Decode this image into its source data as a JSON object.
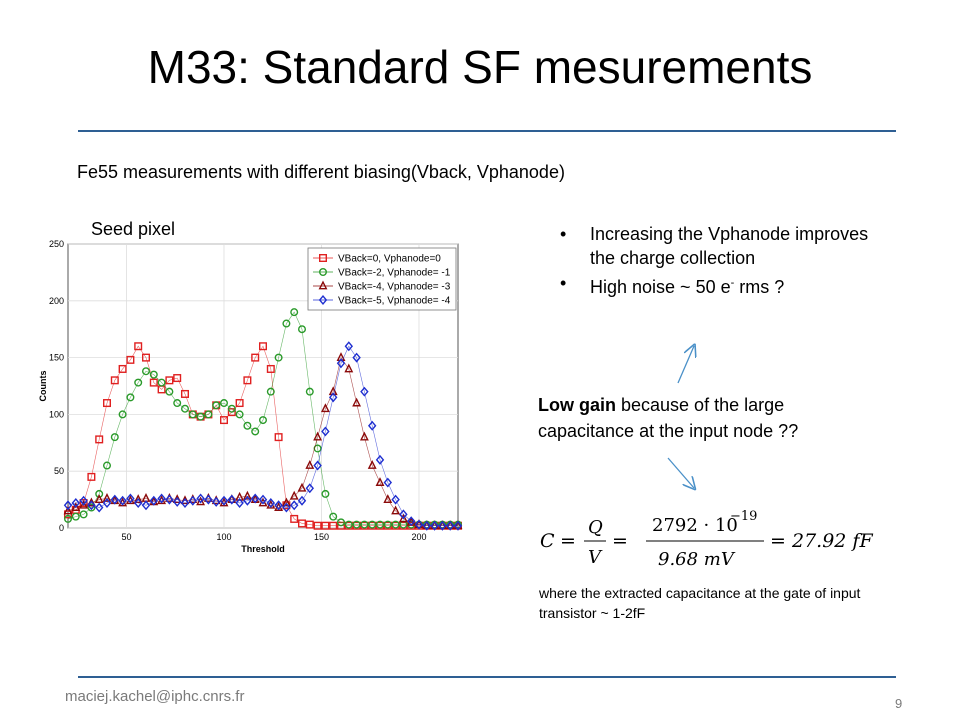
{
  "slide": {
    "title": "M33: Standard SF mesurements",
    "subtitle": "Fe55 measurements with different biasing(Vback, Vphanode)",
    "plot_label": "Seed pixel",
    "bullets": [
      {
        "text": "Increasing the Vphanode improves the charge collection"
      },
      {
        "text_pre": "High noise ~ 50 e",
        "sup": "-",
        "text_post": " rms ?"
      }
    ],
    "low_gain_bold": "Low gain",
    "low_gain_rest": " because of the large capacitance at the input node ??",
    "formula": {
      "lhs": "C",
      "eq": "=",
      "q_num": "Q",
      "q_den": "V",
      "num": "2792 · 10",
      "exp": "−19",
      "den": "9.68 mV",
      "result": "27.92 fF"
    },
    "note": "where the extracted capacitance at the gate of input transistor ~ 1-2fF",
    "email": "maciej.kachel@iphc.cnrs.fr",
    "page_number": "9",
    "colors": {
      "rule": "#2e5f93",
      "arrow": "#4a90c8"
    }
  },
  "chart_data": {
    "type": "scatter",
    "xlabel": "Threshold",
    "ylabel": "Counts",
    "xlim": [
      20,
      220
    ],
    "ylim": [
      0,
      250
    ],
    "xticks": [
      50,
      100,
      150,
      200
    ],
    "yticks": [
      0,
      50,
      100,
      150,
      200,
      250
    ],
    "legend_position": "top-right",
    "grid": true,
    "x": [
      20,
      24,
      28,
      32,
      36,
      40,
      44,
      48,
      52,
      56,
      60,
      64,
      68,
      72,
      76,
      80,
      84,
      88,
      92,
      96,
      100,
      104,
      108,
      112,
      116,
      120,
      124,
      128,
      132,
      136,
      140,
      144,
      148,
      152,
      156,
      160,
      164,
      168,
      172,
      176,
      180,
      184,
      188,
      192,
      196,
      200,
      204,
      208,
      212,
      216,
      220
    ],
    "series": [
      {
        "name": "VBack=0, Vphanode=0",
        "color": "#e02020",
        "marker": "square",
        "values": [
          12,
          16,
          22,
          45,
          78,
          110,
          130,
          140,
          148,
          160,
          150,
          128,
          122,
          130,
          132,
          118,
          100,
          98,
          100,
          108,
          95,
          102,
          110,
          130,
          150,
          160,
          140,
          80,
          20,
          8,
          4,
          3,
          2,
          2,
          2,
          2,
          2,
          2,
          2,
          2,
          2,
          2,
          2,
          2,
          2,
          2,
          2,
          2,
          2,
          2,
          2
        ]
      },
      {
        "name": "VBack=-2, Vphanode= -1",
        "color": "#2a9a2a",
        "marker": "circle",
        "values": [
          8,
          10,
          12,
          18,
          30,
          55,
          80,
          100,
          115,
          128,
          138,
          135,
          128,
          120,
          110,
          105,
          100,
          98,
          100,
          108,
          110,
          105,
          100,
          90,
          85,
          95,
          120,
          150,
          180,
          190,
          175,
          120,
          70,
          30,
          10,
          5,
          3,
          3,
          3,
          3,
          3,
          3,
          3,
          3,
          3,
          3,
          3,
          3,
          3,
          3,
          3
        ]
      },
      {
        "name": "VBack=-4, Vphanode= -3",
        "color": "#8b0a0a",
        "marker": "triangle",
        "values": [
          15,
          18,
          20,
          22,
          25,
          26,
          24,
          22,
          24,
          25,
          26,
          23,
          24,
          26,
          25,
          24,
          25,
          23,
          26,
          24,
          22,
          25,
          27,
          28,
          25,
          22,
          20,
          18,
          22,
          28,
          35,
          55,
          80,
          105,
          120,
          150,
          140,
          110,
          80,
          55,
          40,
          25,
          15,
          8,
          5,
          3,
          2,
          2,
          2,
          2,
          2
        ]
      },
      {
        "name": "VBack=-5, Vphanode= -4",
        "color": "#1f2fd0",
        "marker": "diamond",
        "values": [
          20,
          22,
          24,
          20,
          18,
          22,
          25,
          24,
          26,
          22,
          20,
          24,
          26,
          25,
          23,
          22,
          24,
          26,
          25,
          23,
          24,
          25,
          22,
          24,
          26,
          25,
          22,
          20,
          18,
          20,
          24,
          35,
          55,
          85,
          115,
          145,
          160,
          150,
          120,
          90,
          60,
          40,
          25,
          12,
          6,
          3,
          2,
          2,
          2,
          2,
          2
        ]
      }
    ]
  }
}
